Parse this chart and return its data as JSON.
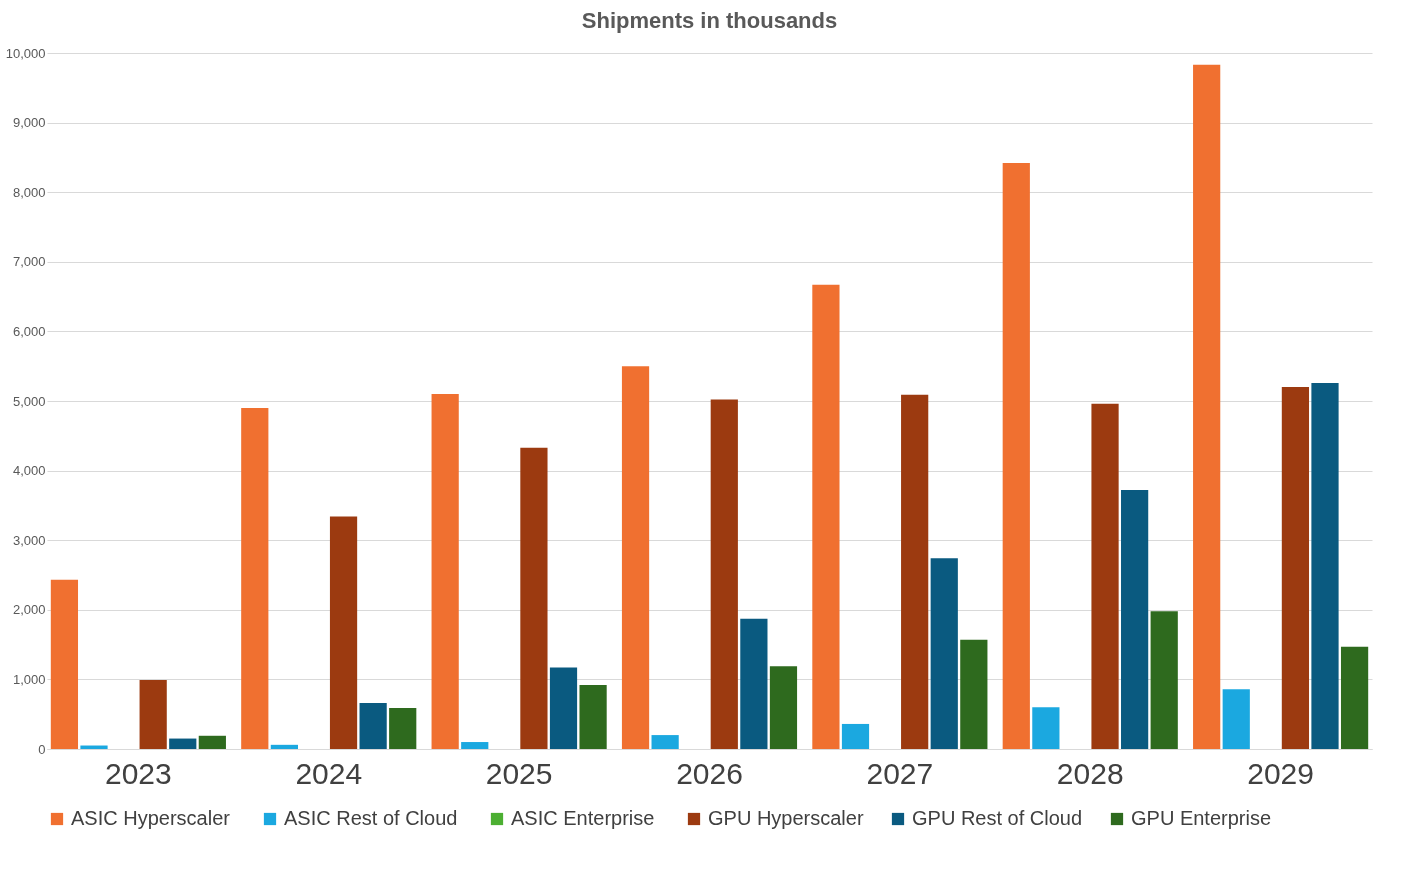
{
  "chart_data": {
    "type": "bar",
    "title": "Shipments in thousands",
    "categories": [
      "2023",
      "2024",
      "2025",
      "2026",
      "2027",
      "2028",
      "2029"
    ],
    "series": [
      {
        "name": "ASIC  Hyperscaler",
        "color": "#f07030",
        "values": [
          2430,
          4900,
          5100,
          5500,
          6670,
          8420,
          9830
        ]
      },
      {
        "name": "ASIC  Rest of Cloud",
        "color": "#1ba8e0",
        "values": [
          50,
          60,
          100,
          200,
          360,
          600,
          860
        ]
      },
      {
        "name": "ASIC  Enterprise",
        "color": "#4caf32",
        "values": [
          0,
          0,
          0,
          0,
          0,
          0,
          0
        ]
      },
      {
        "name": "GPU Hyperscaler",
        "color": "#9c3a10",
        "values": [
          990,
          3340,
          4330,
          5020,
          5090,
          4960,
          5200
        ]
      },
      {
        "name": "GPU Rest of Cloud",
        "color": "#0a5a80",
        "values": [
          150,
          660,
          1170,
          1870,
          2740,
          3720,
          5260
        ]
      },
      {
        "name": "GPU Enterprise",
        "color": "#2e6a1e",
        "values": [
          190,
          590,
          920,
          1190,
          1570,
          1980,
          1470
        ]
      }
    ],
    "ylim": [
      0,
      10000
    ],
    "yticks": [
      {
        "value": 0,
        "label": "0"
      },
      {
        "value": 1000,
        "label": "1,000"
      },
      {
        "value": 2000,
        "label": "2,000"
      },
      {
        "value": 3000,
        "label": "3,000"
      },
      {
        "value": 4000,
        "label": "4,000"
      },
      {
        "value": 5000,
        "label": "5,000"
      },
      {
        "value": 6000,
        "label": "6,000"
      },
      {
        "value": 7000,
        "label": "7,000"
      },
      {
        "value": 8000,
        "label": "8,000"
      },
      {
        "value": 9000,
        "label": "9,000"
      },
      {
        "value": 10000,
        "label": "10,000"
      }
    ],
    "grid": "y",
    "legend": "bottom"
  }
}
